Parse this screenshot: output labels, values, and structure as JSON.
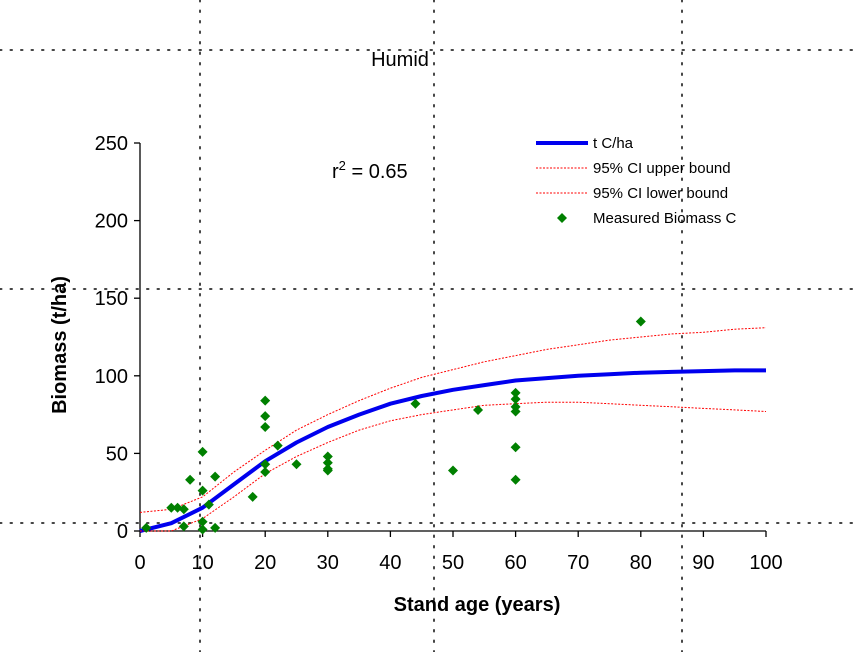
{
  "chart_data": {
    "type": "scatter",
    "title": "Humid",
    "xlabel": "Stand age (years)",
    "ylabel": "Biomass  (t/ha)",
    "xlim": [
      0,
      100
    ],
    "ylim": [
      0,
      250
    ],
    "xticks": [
      0,
      10,
      20,
      30,
      40,
      50,
      60,
      70,
      80,
      90,
      100
    ],
    "yticks": [
      0,
      50,
      100,
      150,
      200,
      250
    ],
    "annotation": {
      "prefix": "r",
      "superscript": "2",
      "suffix": " = 0.65"
    },
    "legend_position": "top-right",
    "series": [
      {
        "name": "t C/ha",
        "style": "line",
        "color": "#0000ee",
        "x": [
          0,
          5,
          10,
          15,
          20,
          25,
          30,
          35,
          40,
          45,
          50,
          55,
          60,
          65,
          70,
          75,
          80,
          85,
          90,
          95,
          100
        ],
        "y": [
          0,
          5,
          15,
          30,
          45,
          57,
          67,
          75,
          82,
          87,
          91,
          94,
          97,
          98.5,
          100,
          101,
          102,
          102.5,
          103,
          103.5,
          103.5
        ]
      },
      {
        "name": "95% CI upper bound",
        "style": "dotted-line",
        "color": "#ff0000",
        "x": [
          0,
          5,
          10,
          15,
          20,
          25,
          30,
          35,
          40,
          45,
          50,
          55,
          60,
          65,
          70,
          75,
          80,
          85,
          90,
          95,
          100
        ],
        "y": [
          12,
          14,
          22,
          38,
          52,
          65,
          75,
          84,
          92,
          99,
          104,
          109,
          113,
          117,
          120,
          123,
          125,
          127,
          128,
          130,
          131
        ]
      },
      {
        "name": "95% CI lower bound",
        "style": "dotted-line",
        "color": "#ff0000",
        "x": [
          0,
          5,
          10,
          15,
          20,
          25,
          30,
          35,
          40,
          45,
          50,
          55,
          60,
          65,
          70,
          75,
          80,
          85,
          90,
          95,
          100
        ],
        "y": [
          0,
          0,
          8,
          22,
          37,
          48,
          57,
          65,
          71,
          75,
          78,
          81,
          82,
          83,
          83,
          82,
          81,
          80,
          79,
          78,
          77
        ]
      },
      {
        "name": "Measured Biomass C",
        "style": "markers",
        "color": "#008000",
        "x": [
          1,
          5,
          6,
          7,
          7,
          8,
          10,
          10,
          10,
          10,
          11,
          12,
          12,
          18,
          20,
          20,
          20,
          20,
          20,
          22,
          25,
          30,
          30,
          30,
          30,
          44,
          50,
          54,
          60,
          60,
          60,
          60,
          60,
          60,
          80
        ],
        "y": [
          2,
          15,
          15,
          14,
          3,
          33,
          51,
          26,
          6,
          1,
          17,
          35,
          2,
          22,
          84,
          74,
          67,
          43,
          38,
          55,
          43,
          48,
          44,
          39,
          40,
          82,
          39,
          78,
          89,
          85,
          77,
          54,
          33,
          80,
          135
        ]
      }
    ]
  }
}
